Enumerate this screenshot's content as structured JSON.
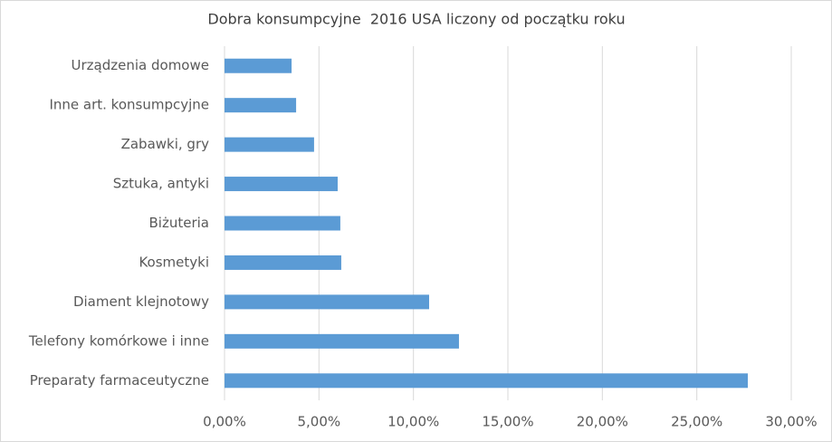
{
  "chart_data": {
    "type": "bar",
    "orientation": "horizontal",
    "title": "Dobra konsumpcyjne  2016 USA liczony od początku roku",
    "categories": [
      "Urządzenia domowe",
      "Inne art. konsumpcyjne",
      "Zabawki, gry",
      "Sztuka, antyki",
      "Biżuteria",
      "Kosmetyki",
      "Diament klejnotowy",
      "Telefony komórkowe i inne",
      "Preparaty farmaceutyczne"
    ],
    "values": [
      3.55,
      3.79,
      4.74,
      5.99,
      6.13,
      6.18,
      10.83,
      12.41,
      27.7
    ],
    "color": "#5b9bd5",
    "xlim": [
      0,
      30
    ],
    "xticks": [
      {
        "value": 0,
        "label": "0,00%"
      },
      {
        "value": 5,
        "label": "5,00%"
      },
      {
        "value": 10,
        "label": "10,00%"
      },
      {
        "value": 15,
        "label": "15,00%"
      },
      {
        "value": 20,
        "label": "20,00%"
      },
      {
        "value": 25,
        "label": "25,00%"
      },
      {
        "value": 30,
        "label": "30,00%"
      }
    ],
    "grid": true
  }
}
